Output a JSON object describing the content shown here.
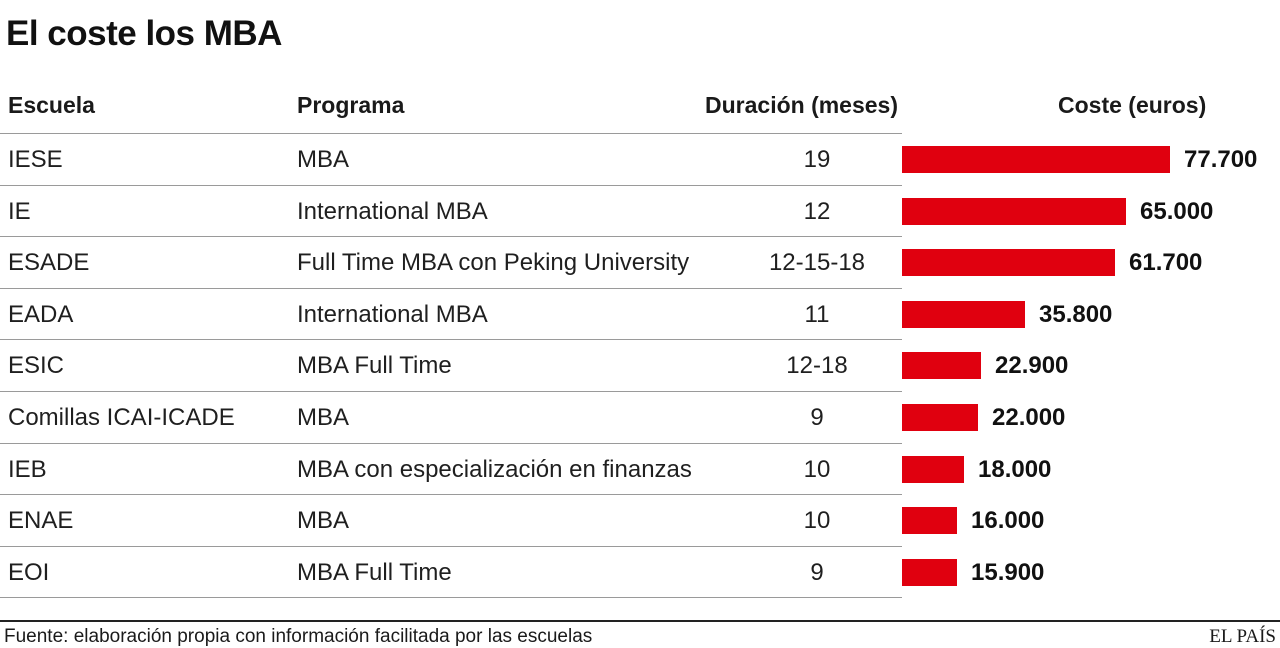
{
  "title": "El coste los MBA",
  "headers": {
    "escuela": "Escuela",
    "programa": "Programa",
    "duracion": "Duración (meses)",
    "coste": "Coste (euros)"
  },
  "chart_data": {
    "type": "bar",
    "orientation": "horizontal",
    "title": "El coste los MBA",
    "xlabel": "Coste (euros)",
    "bar_color": "#e0000f",
    "categories": [
      "IESE",
      "IE",
      "ESADE",
      "EADA",
      "ESIC",
      "Comillas ICAI-ICADE",
      "IEB",
      "ENAE",
      "EOI"
    ],
    "values": [
      77700,
      65000,
      61700,
      35800,
      22900,
      22000,
      18000,
      16000,
      15900
    ],
    "value_labels": [
      "77.700",
      "65.000",
      "61.700",
      "35.800",
      "22.900",
      "22.000",
      "18.000",
      "16.000",
      "15.900"
    ],
    "xlim": [
      0,
      77700
    ]
  },
  "rows": [
    {
      "escuela": "IESE",
      "programa": "MBA",
      "duracion": "19"
    },
    {
      "escuela": "IE",
      "programa": "International MBA",
      "duracion": "12"
    },
    {
      "escuela": "ESADE",
      "programa": "Full Time MBA con Peking University",
      "duracion": "12-15-18"
    },
    {
      "escuela": "EADA",
      "programa": "International MBA",
      "duracion": "11"
    },
    {
      "escuela": "ESIC",
      "programa": "MBA Full Time",
      "duracion": "12-18"
    },
    {
      "escuela": "Comillas ICAI-ICADE",
      "programa": "MBA",
      "duracion": "9"
    },
    {
      "escuela": "IEB",
      "programa": "MBA con especialización en finanzas",
      "duracion": "10"
    },
    {
      "escuela": "ENAE",
      "programa": "MBA",
      "duracion": "10"
    },
    {
      "escuela": "EOI",
      "programa": "MBA Full Time",
      "duracion": "9"
    }
  ],
  "footer": {
    "source": "Fuente: elaboración propia con información facilitada por las escuelas",
    "brand": "EL PAÍS"
  }
}
